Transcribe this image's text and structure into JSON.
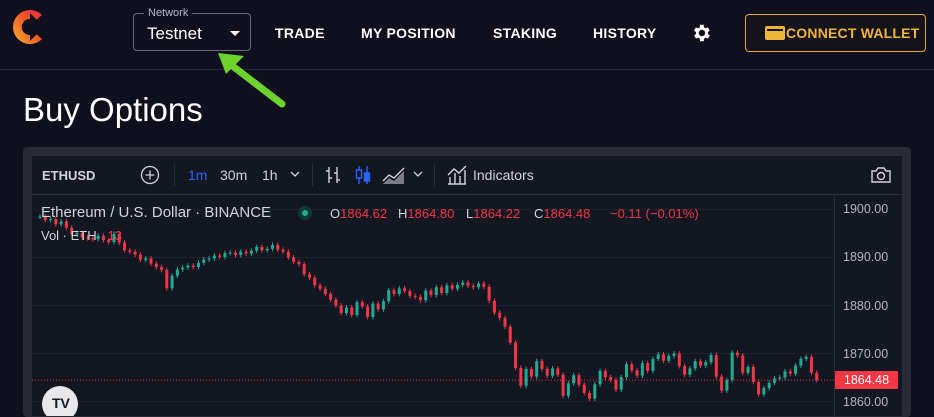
{
  "app": {
    "logo": "celer-c-logo"
  },
  "network": {
    "label": "Network",
    "value": "Testnet"
  },
  "nav": {
    "trade": "TRADE",
    "position": "MY POSITION",
    "staking": "STAKING",
    "history": "HISTORY"
  },
  "connect": {
    "label": "CONNECT WALLET",
    "icon": "wallet-icon"
  },
  "page": {
    "title": "Buy Options"
  },
  "colors": {
    "accent": "#f0b43a",
    "up": "#22ab94",
    "down": "#f23645",
    "active_tf": "#2962ff",
    "annotation_arrow": "#6ed22e"
  },
  "chart_toolbar": {
    "symbol": "ETHUSD",
    "timeframes": [
      "1m",
      "30m",
      "1h"
    ],
    "active_timeframe": "1m",
    "indicators_label": "Indicators"
  },
  "legend": {
    "title": "Ethereum / U.S. Dollar · BINANCE",
    "o_label": "O",
    "o": "1864.62",
    "h_label": "H",
    "h": "1864.80",
    "l_label": "L",
    "l": "1864.22",
    "c_label": "C",
    "c": "1864.48",
    "change": "−0.11 (−0.01%)",
    "vol_label": "Vol · ETH",
    "vol": "13"
  },
  "chart_data": {
    "type": "line",
    "title": "",
    "xlabel": "",
    "ylabel": "",
    "ylim": [
      1857,
      1903
    ],
    "y_ticks": [
      "1900.00",
      "1890.00",
      "1880.00",
      "1870.00",
      "1860.00"
    ],
    "last_price": "1864.48",
    "grid": true,
    "series": [
      {
        "values": [
          1898.5,
          1897.8,
          1898.0,
          1896.9,
          1897.5,
          1896.2,
          1894.8,
          1895.1,
          1894.2,
          1894.0,
          1893.8,
          1894.5,
          1893.6,
          1893.2,
          1894.9,
          1893.1,
          1891.5,
          1891.2,
          1890.6,
          1889.5,
          1889.8,
          1888.7,
          1888.0,
          1887.4,
          1883.6,
          1886.2,
          1887.5,
          1887.9,
          1888.3,
          1888.0,
          1888.9,
          1889.6,
          1889.8,
          1890.4,
          1890.1,
          1890.9,
          1891.0,
          1890.5,
          1891.2,
          1890.8,
          1891.4,
          1892.2,
          1891.5,
          1891.8,
          1892.6,
          1891.6,
          1891.2,
          1890.0,
          1889.1,
          1888.6,
          1886.5,
          1885.8,
          1884.2,
          1883.5,
          1882.4,
          1881.2,
          1880.0,
          1878.4,
          1879.6,
          1878.0,
          1880.7,
          1879.8,
          1877.6,
          1880.4,
          1879.2,
          1880.9,
          1883.2,
          1882.4,
          1883.6,
          1883.0,
          1882.0,
          1881.8,
          1881.1,
          1883.1,
          1882.2,
          1883.8,
          1882.6,
          1884.2,
          1883.5,
          1884.3,
          1884.8,
          1884.1,
          1883.8,
          1884.6,
          1883.9,
          1881.0,
          1878.5,
          1877.4,
          1875.6,
          1872.3,
          1867.0,
          1863.3,
          1866.8,
          1865.2,
          1868.4,
          1866.8,
          1865.4,
          1866.9,
          1865.6,
          1861.2,
          1863.8,
          1865.5,
          1863.5,
          1861.8,
          1860.6,
          1863.6,
          1866.4,
          1865.1,
          1864.5,
          1862.5,
          1865.1,
          1867.8,
          1866.5,
          1865.4,
          1868.0,
          1866.4,
          1868.9,
          1869.8,
          1868.5,
          1869.5,
          1870.0,
          1867.4,
          1865.6,
          1866.9,
          1868.4,
          1867.5,
          1868.2,
          1869.7,
          1865.2,
          1862.3,
          1864.5,
          1870.2,
          1869.6,
          1866.0,
          1867.2,
          1864.1,
          1861.5,
          1862.8,
          1863.9,
          1864.8,
          1865.0,
          1866.3,
          1865.8,
          1867.5,
          1868.9,
          1869.3,
          1866.0,
          1864.48
        ]
      }
    ]
  }
}
